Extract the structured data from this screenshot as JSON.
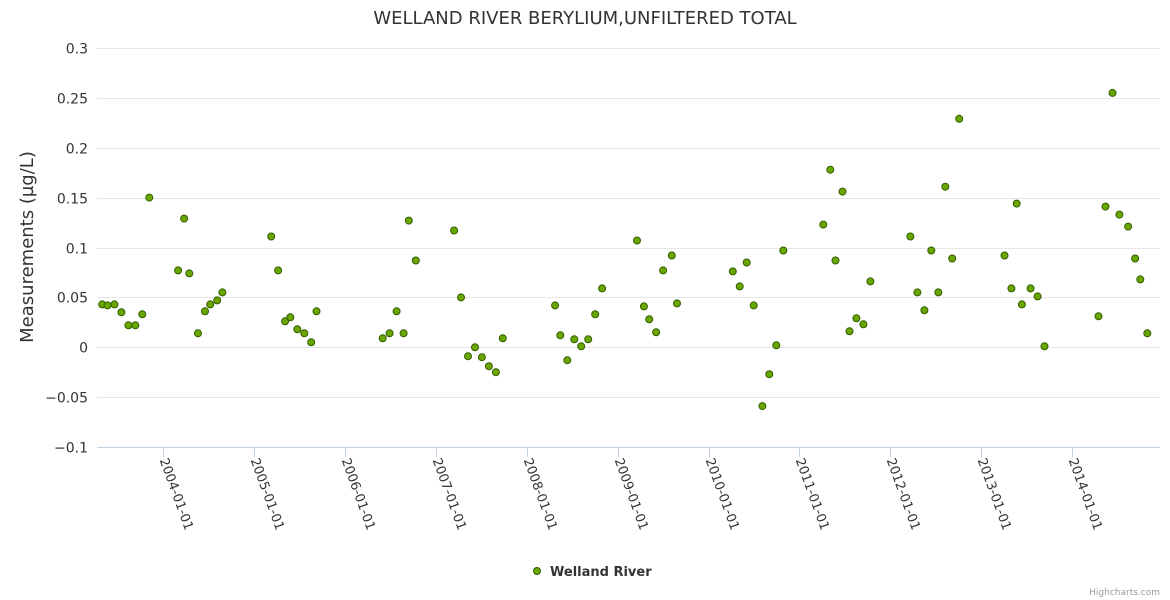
{
  "chart_data": {
    "type": "scatter",
    "title": "WELLAND RIVER BERYLIUM,UNFILTERED TOTAL",
    "ylabel": "Measurements (µg/L)",
    "xlabel": "",
    "ylim": [
      -0.1,
      0.3
    ],
    "yticks": [
      "0.3",
      "0.25",
      "0.2",
      "0.15",
      "0.1",
      "0.05",
      "0",
      "−0.05",
      "−0.1"
    ],
    "ytick_values": [
      0.3,
      0.25,
      0.2,
      0.15,
      0.1,
      0.05,
      0,
      -0.05,
      -0.1
    ],
    "xlim": [
      "2003-04-10",
      "2014-12-20"
    ],
    "xticks": [
      "2004-01-01",
      "2005-01-01",
      "2006-01-01",
      "2007-01-01",
      "2008-01-01",
      "2009-01-01",
      "2010-01-01",
      "2011-01-01",
      "2012-01-01",
      "2013-01-01",
      "2014-01-01"
    ],
    "grid": true,
    "legend_position": "bottom-center",
    "marker_color": "#6aa500",
    "marker_stroke": "#2f5f00",
    "series": [
      {
        "name": "Welland River",
        "points": [
          {
            "x": "2003-05-01",
            "y": 0.043
          },
          {
            "x": "2003-05-22",
            "y": 0.042
          },
          {
            "x": "2003-06-19",
            "y": 0.043
          },
          {
            "x": "2003-07-17",
            "y": 0.035
          },
          {
            "x": "2003-08-14",
            "y": 0.022
          },
          {
            "x": "2003-09-11",
            "y": 0.022
          },
          {
            "x": "2003-10-09",
            "y": 0.033
          },
          {
            "x": "2003-11-06",
            "y": 0.15
          },
          {
            "x": "2004-03-01",
            "y": 0.077
          },
          {
            "x": "2004-03-25",
            "y": 0.129
          },
          {
            "x": "2004-04-15",
            "y": 0.074
          },
          {
            "x": "2004-05-20",
            "y": 0.014
          },
          {
            "x": "2004-06-17",
            "y": 0.036
          },
          {
            "x": "2004-07-08",
            "y": 0.043
          },
          {
            "x": "2004-08-05",
            "y": 0.047
          },
          {
            "x": "2004-08-26",
            "y": 0.055
          },
          {
            "x": "2005-03-10",
            "y": 0.111
          },
          {
            "x": "2005-04-07",
            "y": 0.077
          },
          {
            "x": "2005-05-05",
            "y": 0.026
          },
          {
            "x": "2005-05-26",
            "y": 0.03
          },
          {
            "x": "2005-06-23",
            "y": 0.018
          },
          {
            "x": "2005-07-21",
            "y": 0.014
          },
          {
            "x": "2005-08-18",
            "y": 0.005
          },
          {
            "x": "2005-09-08",
            "y": 0.036
          },
          {
            "x": "2006-06-01",
            "y": 0.009
          },
          {
            "x": "2006-06-29",
            "y": 0.014
          },
          {
            "x": "2006-07-27",
            "y": 0.036
          },
          {
            "x": "2006-08-24",
            "y": 0.014
          },
          {
            "x": "2006-09-14",
            "y": 0.127
          },
          {
            "x": "2006-10-12",
            "y": 0.087
          },
          {
            "x": "2007-03-15",
            "y": 0.117
          },
          {
            "x": "2007-04-12",
            "y": 0.05
          },
          {
            "x": "2007-05-10",
            "y": -0.009
          },
          {
            "x": "2007-06-07",
            "y": 0.0
          },
          {
            "x": "2007-07-05",
            "y": -0.01
          },
          {
            "x": "2007-08-02",
            "y": -0.019
          },
          {
            "x": "2007-08-30",
            "y": -0.025
          },
          {
            "x": "2007-09-27",
            "y": 0.009
          },
          {
            "x": "2008-04-24",
            "y": 0.042
          },
          {
            "x": "2008-05-15",
            "y": 0.012
          },
          {
            "x": "2008-06-12",
            "y": -0.013
          },
          {
            "x": "2008-07-10",
            "y": 0.008
          },
          {
            "x": "2008-08-07",
            "y": 0.001
          },
          {
            "x": "2008-09-04",
            "y": 0.008
          },
          {
            "x": "2008-10-02",
            "y": 0.033
          },
          {
            "x": "2008-10-30",
            "y": 0.059
          },
          {
            "x": "2009-03-19",
            "y": 0.107
          },
          {
            "x": "2009-04-16",
            "y": 0.041
          },
          {
            "x": "2009-05-07",
            "y": 0.028
          },
          {
            "x": "2009-06-04",
            "y": 0.015
          },
          {
            "x": "2009-07-02",
            "y": 0.077
          },
          {
            "x": "2009-08-06",
            "y": 0.092
          },
          {
            "x": "2009-08-27",
            "y": 0.044
          },
          {
            "x": "2010-04-08",
            "y": 0.076
          },
          {
            "x": "2010-05-06",
            "y": 0.061
          },
          {
            "x": "2010-06-03",
            "y": 0.085
          },
          {
            "x": "2010-07-01",
            "y": 0.042
          },
          {
            "x": "2010-08-05",
            "y": -0.059
          },
          {
            "x": "2010-09-02",
            "y": -0.027
          },
          {
            "x": "2010-09-30",
            "y": 0.002
          },
          {
            "x": "2010-10-28",
            "y": 0.097
          },
          {
            "x": "2011-04-07",
            "y": 0.123
          },
          {
            "x": "2011-05-05",
            "y": 0.178
          },
          {
            "x": "2011-05-26",
            "y": 0.087
          },
          {
            "x": "2011-06-23",
            "y": 0.156
          },
          {
            "x": "2011-07-21",
            "y": 0.016
          },
          {
            "x": "2011-08-18",
            "y": 0.029
          },
          {
            "x": "2011-09-15",
            "y": 0.023
          },
          {
            "x": "2011-10-13",
            "y": 0.066
          },
          {
            "x": "2012-03-22",
            "y": 0.111
          },
          {
            "x": "2012-04-19",
            "y": 0.055
          },
          {
            "x": "2012-05-17",
            "y": 0.037
          },
          {
            "x": "2012-06-14",
            "y": 0.097
          },
          {
            "x": "2012-07-12",
            "y": 0.055
          },
          {
            "x": "2012-08-09",
            "y": 0.161
          },
          {
            "x": "2012-09-06",
            "y": 0.089
          },
          {
            "x": "2012-10-04",
            "y": 0.229
          },
          {
            "x": "2013-04-04",
            "y": 0.092
          },
          {
            "x": "2013-05-02",
            "y": 0.059
          },
          {
            "x": "2013-05-23",
            "y": 0.144
          },
          {
            "x": "2013-06-13",
            "y": 0.043
          },
          {
            "x": "2013-07-18",
            "y": 0.059
          },
          {
            "x": "2013-08-15",
            "y": 0.051
          },
          {
            "x": "2013-09-12",
            "y": 0.001
          },
          {
            "x": "2014-04-17",
            "y": 0.031
          },
          {
            "x": "2014-05-15",
            "y": 0.141
          },
          {
            "x": "2014-06-12",
            "y": 0.255
          },
          {
            "x": "2014-07-10",
            "y": 0.133
          },
          {
            "x": "2014-08-14",
            "y": 0.121
          },
          {
            "x": "2014-09-11",
            "y": 0.089
          },
          {
            "x": "2014-10-02",
            "y": 0.068
          },
          {
            "x": "2014-10-30",
            "y": 0.014
          }
        ]
      }
    ]
  },
  "credits": "Highcharts.com"
}
